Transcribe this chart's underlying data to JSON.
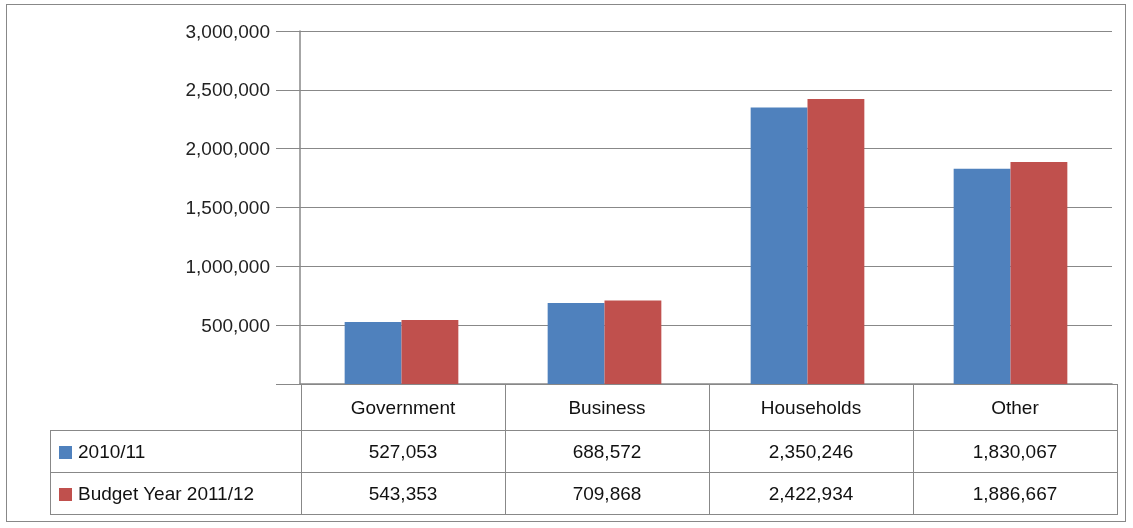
{
  "chart_data": {
    "type": "bar",
    "categories": [
      "Government",
      "Business",
      "Households",
      "Other"
    ],
    "series": [
      {
        "name": "2010/11",
        "color": "#4f81bd",
        "values": [
          527053,
          688572,
          2350246,
          1830067
        ],
        "value_labels": [
          "527,053",
          "688,572",
          "2,350,246",
          "1,830,067"
        ]
      },
      {
        "name": "Budget Year 2011/12",
        "color": "#c0504d",
        "values": [
          543353,
          709868,
          2422934,
          1886667
        ],
        "value_labels": [
          "543,353",
          "709,868",
          "2,422,934",
          "1,886,667"
        ]
      }
    ],
    "ylim": [
      0,
      3000000
    ],
    "yticks": [
      {
        "value": 0,
        "label": null
      },
      {
        "value": 500000,
        "label": "500,000"
      },
      {
        "value": 1000000,
        "label": "1,000,000"
      },
      {
        "value": 1500000,
        "label": "1,500,000"
      },
      {
        "value": 2000000,
        "label": "2,000,000"
      },
      {
        "value": 2500000,
        "label": "2,500,000"
      },
      {
        "value": 3000000,
        "label": "3,000,000"
      }
    ],
    "grid": "y",
    "legend": "bottom left"
  }
}
